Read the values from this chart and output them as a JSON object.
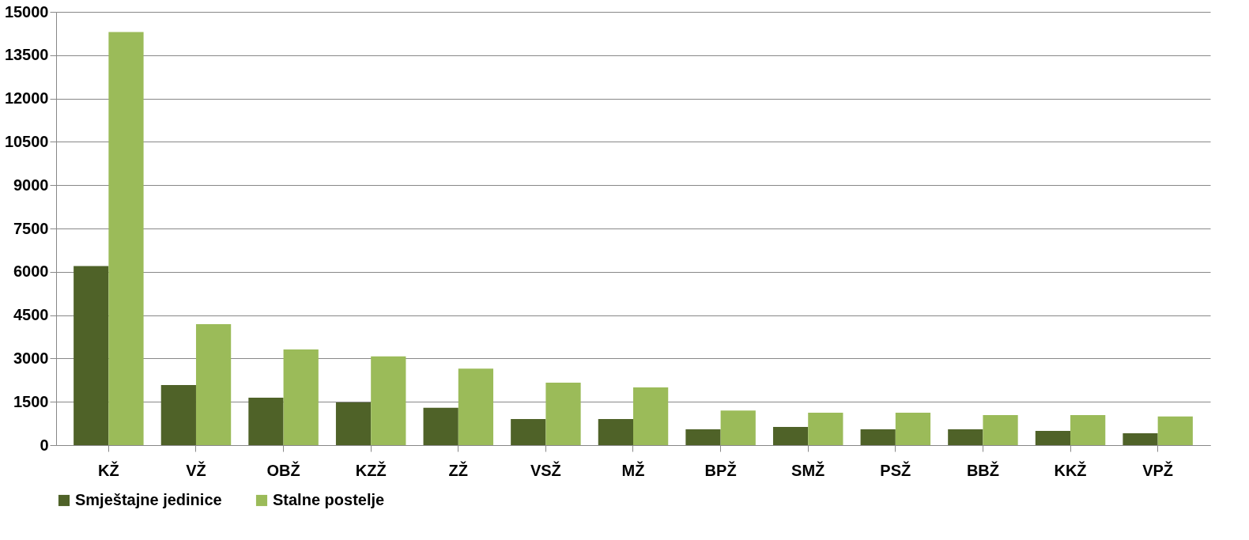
{
  "chart_data": {
    "type": "bar",
    "categories": [
      "KŽ",
      "VŽ",
      "OBŽ",
      "KZŽ",
      "ZŽ",
      "VSŽ",
      "MŽ",
      "BPŽ",
      "SMŽ",
      "PSŽ",
      "BBŽ",
      "KKŽ",
      "VPŽ"
    ],
    "series": [
      {
        "name": "Smještajne jedinice",
        "color": "#4f6228",
        "values": [
          6200,
          2080,
          1640,
          1480,
          1290,
          900,
          900,
          550,
          630,
          550,
          550,
          490,
          410
        ]
      },
      {
        "name": "Stalne postelje",
        "color": "#9bbb59",
        "values": [
          14300,
          4190,
          3310,
          3070,
          2650,
          2160,
          2000,
          1200,
          1120,
          1120,
          1040,
          1040,
          990
        ]
      }
    ],
    "ylim": [
      0,
      15000
    ],
    "yticks": [
      0,
      1500,
      3000,
      4500,
      6000,
      7500,
      9000,
      10500,
      12000,
      13500,
      15000
    ],
    "grid": "y",
    "legend": "bottom"
  }
}
